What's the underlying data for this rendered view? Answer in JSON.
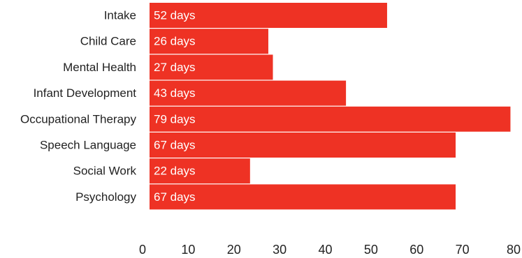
{
  "chart_data": {
    "type": "bar",
    "orientation": "horizontal",
    "categories": [
      "Intake",
      "Child Care",
      "Mental Health",
      "Infant Development",
      "Occupational Therapy",
      "Speech Language",
      "Social Work",
      "Psychology"
    ],
    "values": [
      52,
      26,
      27,
      43,
      79,
      67,
      22,
      67
    ],
    "data_labels": [
      "52 days",
      "26 days",
      "27 days",
      "43 days",
      "79 days",
      "67 days",
      "22 days",
      "67 days"
    ],
    "xlim": [
      0,
      80
    ],
    "x_ticks": [
      "0",
      "10",
      "20",
      "30",
      "40",
      "50",
      "60",
      "70",
      "80"
    ],
    "title": "",
    "xlabel": "",
    "ylabel": "",
    "grid": false,
    "legend": "none",
    "bar_color": "#ee3224"
  }
}
